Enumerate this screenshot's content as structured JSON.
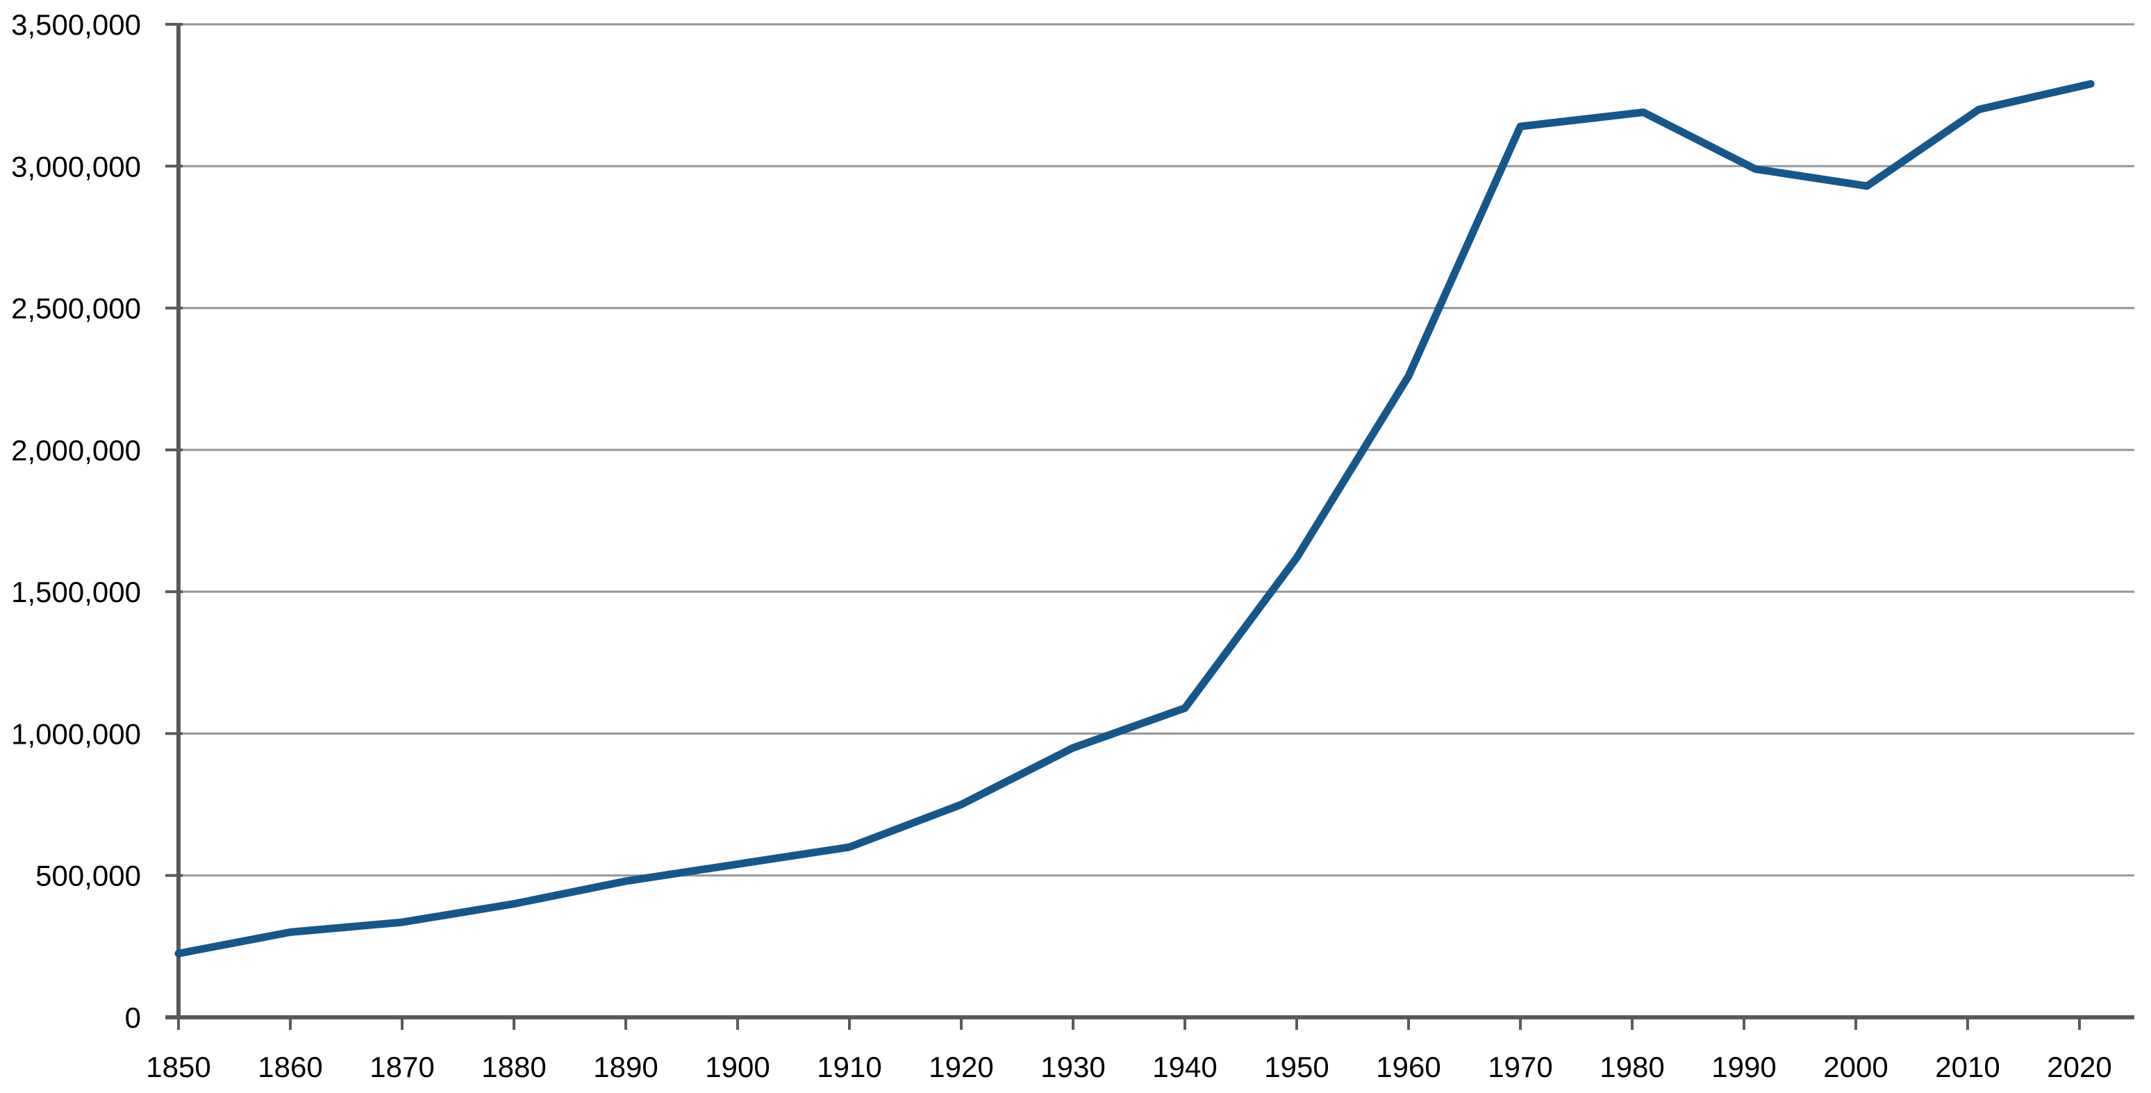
{
  "chart_data": {
    "type": "line",
    "title": "",
    "xlabel": "",
    "ylabel": "",
    "x": [
      1850,
      1860,
      1870,
      1880,
      1890,
      1900,
      1910,
      1920,
      1930,
      1940,
      1950,
      1960,
      1970,
      1981,
      1991,
      2001,
      2011,
      2021
    ],
    "values": [
      225000,
      300000,
      335000,
      400000,
      480000,
      540000,
      600000,
      750000,
      950000,
      1090000,
      1620000,
      2260000,
      3140000,
      3190000,
      2990000,
      2930000,
      3200000,
      3290000
    ],
    "x_tick_years": [
      1850,
      1860,
      1870,
      1880,
      1890,
      1900,
      1910,
      1920,
      1930,
      1940,
      1950,
      1960,
      1970,
      1980,
      1990,
      2000,
      2010,
      2020
    ],
    "x_tick_labels": [
      "1850",
      "1860",
      "1870",
      "1880",
      "1890",
      "1900",
      "1910",
      "1920",
      "1930",
      "1940",
      "1950",
      "1960",
      "1970",
      "1980",
      "1990",
      "2000",
      "2010",
      "2020"
    ],
    "y_tick_values": [
      0,
      500000,
      1000000,
      1500000,
      2000000,
      2500000,
      3000000,
      3500000
    ],
    "y_tick_labels": [
      "0",
      "500,000",
      "1,000,000",
      "1,500,000",
      "2,000,000",
      "2,500,000",
      "3,000,000",
      "3,500,000"
    ],
    "xlim": [
      1850,
      2020
    ],
    "ylim": [
      0,
      3500000
    ],
    "grid": "horizontal-major",
    "legend": "none",
    "colors": {
      "line": "#15578b",
      "axis": "#5a5a5a",
      "gridline": "#969696",
      "label": "#000000",
      "background": "#ffffff"
    }
  }
}
